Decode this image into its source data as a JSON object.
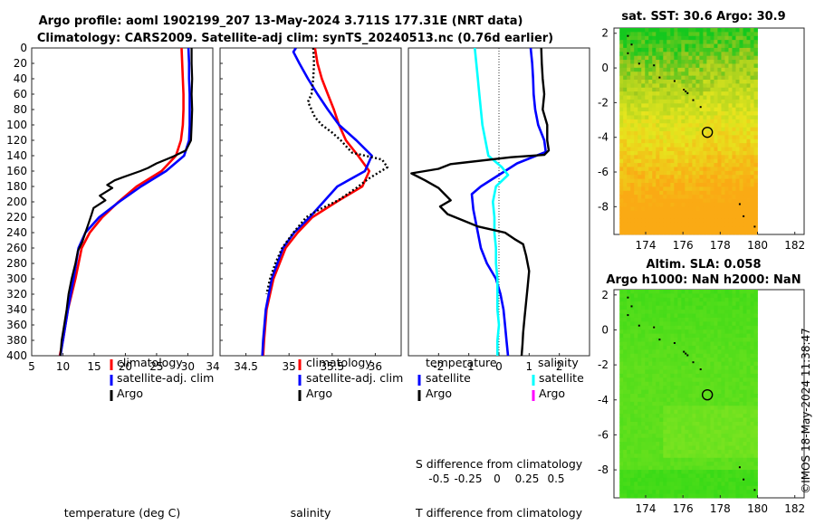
{
  "header": {
    "line1": "Argo profile: aoml 1902199_207 13-May-2024 3.711S 177.31E (NRT data)",
    "line2": "Climatology: CARS2009. Satellite-adj clim: synTS_20240513.nc (0.76d earlier)"
  },
  "colors": {
    "climatology": "#ff0000",
    "satellite": "#0000ff",
    "argo": "#000000",
    "sat_salinity": "#00ffff",
    "argo_salinity": "#ff00ff"
  },
  "chart_data": [
    {
      "type": "line",
      "id": "temperature",
      "xlabel": "temperature (deg C)",
      "ylabel": "",
      "xlim": [
        5,
        34
      ],
      "ylim": [
        0,
        400
      ],
      "y_reversed": true,
      "xticks": [
        5,
        10,
        15,
        20,
        25,
        30,
        34
      ],
      "xtick_labels": [
        "5",
        "10",
        "15",
        "20",
        "25",
        "30",
        "34"
      ],
      "yticks": [
        0,
        20,
        40,
        60,
        80,
        100,
        120,
        140,
        160,
        180,
        200,
        220,
        240,
        260,
        280,
        300,
        320,
        340,
        360,
        380,
        400
      ],
      "ytick_labels": [
        "0",
        "20",
        "40",
        "60",
        "80",
        "100",
        "120",
        "140",
        "160",
        "180",
        "200",
        "220",
        "240",
        "260",
        "280",
        "300",
        "320",
        "340",
        "360",
        "380",
        "400"
      ],
      "legend": [
        "climatology",
        "satellite-adj. clim",
        "Argo"
      ],
      "legend_position": "lower-right",
      "series": [
        {
          "name": "climatology",
          "color": "#ff0000",
          "width": 2.6,
          "x": [
            29.0,
            29.1,
            29.2,
            29.3,
            29.3,
            29.2,
            28.9,
            28.1,
            25.8,
            21.8,
            18.9,
            16.3,
            14.3,
            13.0,
            12.0,
            10.8,
            10.0,
            9.5
          ],
          "y": [
            0,
            20,
            40,
            60,
            80,
            100,
            120,
            140,
            160,
            180,
            200,
            220,
            240,
            260,
            300,
            340,
            380,
            400
          ]
        },
        {
          "name": "satellite-adj. clim",
          "color": "#0000ff",
          "width": 2.6,
          "x": [
            30.1,
            30.2,
            30.2,
            30.3,
            30.3,
            30.3,
            30.2,
            29.4,
            26.5,
            22.5,
            19.0,
            15.8,
            13.6,
            12.5,
            11.7,
            10.8,
            10.0,
            9.6
          ],
          "y": [
            0,
            20,
            40,
            60,
            80,
            100,
            120,
            140,
            160,
            180,
            200,
            220,
            240,
            260,
            300,
            340,
            380,
            400
          ]
        },
        {
          "name": "Argo",
          "color": "#000000",
          "width": 2.2,
          "x": [
            30.6,
            30.6,
            30.7,
            30.6,
            30.7,
            30.6,
            30.5,
            29.7,
            27.7,
            25.0,
            23.6,
            22.4,
            19.6,
            18.3,
            17.1,
            17.9,
            15.9,
            16.8,
            14.9,
            14.6,
            14.1,
            13.6,
            13.1,
            12.4,
            12.0,
            11.4,
            10.9,
            10.6,
            10.2,
            9.8,
            9.6
          ],
          "y": [
            0,
            20,
            40,
            60,
            80,
            100,
            120,
            133,
            141,
            150,
            156,
            160,
            168,
            172,
            178,
            182,
            192,
            198,
            208,
            216,
            228,
            240,
            252,
            264,
            280,
            300,
            320,
            340,
            360,
            380,
            400
          ]
        }
      ]
    },
    {
      "type": "line",
      "id": "salinity",
      "xlabel": "salinity",
      "ylabel": "",
      "xlim": [
        34.2,
        36.3
      ],
      "ylim": [
        0,
        400
      ],
      "y_reversed": true,
      "xticks": [
        34.5,
        35,
        35.5,
        36
      ],
      "xtick_labels": [
        "34.5",
        "35",
        "35.5",
        "36"
      ],
      "legend": [
        "climatology",
        "satellite-adj. clim",
        "Argo"
      ],
      "legend_position": "lower-right",
      "series": [
        {
          "name": "climatology",
          "color": "#ff0000",
          "width": 2.6,
          "x": [
            35.3,
            35.33,
            35.38,
            35.45,
            35.52,
            35.58,
            35.66,
            35.8,
            35.93,
            35.85,
            35.55,
            35.27,
            35.1,
            34.96,
            34.82,
            34.74,
            34.71,
            34.7
          ],
          "y": [
            0,
            20,
            40,
            60,
            80,
            100,
            120,
            140,
            160,
            180,
            200,
            220,
            240,
            260,
            300,
            340,
            380,
            400
          ]
        },
        {
          "name": "satellite-adj. clim",
          "color": "#0000ff",
          "width": 2.6,
          "x": [
            35.08,
            35.05,
            35.12,
            35.22,
            35.33,
            35.45,
            35.58,
            35.78,
            35.96,
            35.88,
            35.56,
            35.24,
            35.06,
            34.93,
            34.8,
            34.73,
            34.7,
            34.69
          ],
          "y": [
            0,
            5,
            20,
            40,
            60,
            80,
            100,
            120,
            140,
            160,
            180,
            220,
            240,
            260,
            300,
            340,
            380,
            400
          ]
        },
        {
          "name": "Argo",
          "color": "#000000",
          "width": 2.4,
          "dash": "2,2.5",
          "x": [
            35.28,
            35.29,
            35.28,
            35.26,
            35.22,
            35.26,
            35.3,
            35.38,
            35.5,
            35.6,
            35.68,
            35.73,
            36.08,
            36.14,
            35.92,
            35.78,
            35.57,
            35.35,
            35.2,
            35.05,
            34.92,
            34.84,
            34.78,
            34.74
          ],
          "y": [
            0,
            20,
            40,
            60,
            70,
            80,
            90,
            100,
            110,
            120,
            130,
            136,
            145,
            155,
            170,
            182,
            198,
            210,
            220,
            240,
            260,
            280,
            300,
            320
          ]
        }
      ]
    },
    {
      "type": "line",
      "id": "difference",
      "xlabel": "T difference from climatology",
      "ylabel": "",
      "xlim": [
        -3,
        3
      ],
      "ylim": [
        0,
        400
      ],
      "y_reversed": true,
      "xticks": [
        -2,
        -1,
        0,
        1,
        2
      ],
      "xtick_labels": [
        "-2",
        "-1",
        "0",
        "1",
        "2"
      ],
      "secondary_axis_label": "S difference from climatology",
      "secondary_xtick_labels": [
        "-0.5",
        "-0.25",
        "0",
        "0.25",
        "0.5"
      ],
      "legend_temperature_title": "temperature",
      "legend_salinity_title": "salinity",
      "legend_temperature": [
        "satellite",
        "Argo"
      ],
      "legend_salinity": [
        "satellite",
        "Argo"
      ],
      "legend_position": "lower",
      "series": [
        {
          "name": "T satellite",
          "color": "#0000ff",
          "width": 2.6,
          "x": [
            1.05,
            1.1,
            1.13,
            1.15,
            1.2,
            1.3,
            1.5,
            1.55,
            0.6,
            0.2,
            -0.2,
            -0.6,
            -0.9,
            -0.85,
            -0.7,
            -0.6,
            -0.4,
            -0.1,
            0.05,
            0.15,
            0.2,
            0.25,
            0.3
          ],
          "y": [
            0,
            20,
            40,
            60,
            80,
            100,
            120,
            135,
            150,
            160,
            170,
            180,
            190,
            210,
            240,
            260,
            280,
            300,
            320,
            340,
            360,
            380,
            400
          ]
        },
        {
          "name": "S satellite",
          "color": "#00ffff",
          "width": 2.6,
          "x": [
            -0.8,
            -0.75,
            -0.7,
            -0.65,
            -0.6,
            -0.55,
            -0.45,
            -0.35,
            0.1,
            0.3,
            -0.1,
            -0.2,
            -0.15,
            -0.15,
            -0.1,
            -0.1,
            -0.05,
            -0.05,
            -0.05,
            0.0,
            -0.05,
            -0.05
          ],
          "y": [
            0,
            20,
            40,
            60,
            80,
            100,
            120,
            140,
            155,
            165,
            180,
            200,
            220,
            240,
            260,
            280,
            300,
            320,
            340,
            360,
            380,
            400
          ]
        },
        {
          "name": "T Argo",
          "color": "#000000",
          "width": 2.4,
          "x": [
            1.4,
            1.42,
            1.45,
            1.5,
            1.45,
            1.6,
            1.6,
            1.65,
            1.5,
            0.4,
            -1.6,
            -2.0,
            -2.9,
            -2.45,
            -2.0,
            -1.8,
            -1.6,
            -1.95,
            -1.7,
            -1.2,
            -0.7,
            0.2,
            0.5,
            0.8,
            0.9,
            1.0,
            0.95,
            0.9,
            0.85,
            0.8,
            0.78,
            0.75
          ],
          "y": [
            0,
            20,
            40,
            60,
            80,
            100,
            120,
            133,
            139,
            142,
            151,
            157,
            163,
            172,
            182,
            190,
            198,
            206,
            216,
            224,
            232,
            240,
            248,
            255,
            270,
            290,
            310,
            330,
            350,
            370,
            385,
            400
          ]
        }
      ]
    },
    {
      "type": "heatmap",
      "id": "sst_map",
      "title": "sat. SST: 30.6 Argo: 30.9",
      "xlim": [
        172.3,
        182.5
      ],
      "ylim": [
        -9.6,
        2.3
      ],
      "xticks": [
        174,
        176,
        178,
        180,
        182
      ],
      "xtick_labels": [
        "174",
        "176",
        "178",
        "180",
        "182"
      ],
      "yticks": [
        2,
        0,
        -2,
        -4,
        -6,
        -8
      ],
      "ytick_labels": [
        "2",
        "0",
        "-2",
        "-4",
        "-6",
        "-8"
      ],
      "profile_location": [
        177.31,
        -3.711
      ]
    },
    {
      "type": "heatmap",
      "id": "sla_map",
      "title_line1": "Altim. SLA: 0.058",
      "title_line2": "Argo h1000: NaN h2000: NaN",
      "xlim": [
        172.3,
        182.5
      ],
      "ylim": [
        -9.6,
        2.3
      ],
      "xticks": [
        174,
        176,
        178,
        180,
        182
      ],
      "xtick_labels": [
        "174",
        "176",
        "178",
        "180",
        "182"
      ],
      "yticks": [
        2,
        0,
        -2,
        -4,
        -6,
        -8
      ],
      "ytick_labels": [
        "2",
        "0",
        "-2",
        "-4",
        "-6",
        "-8"
      ],
      "profile_location": [
        177.31,
        -3.711
      ]
    }
  ],
  "watermark": "©IMOS 18-May-2024 11:38:47"
}
